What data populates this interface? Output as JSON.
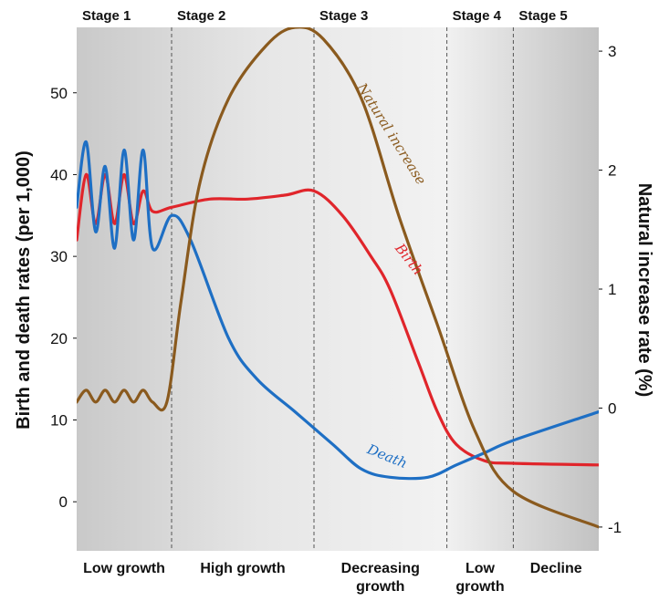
{
  "chart_data": {
    "type": "line",
    "title": "",
    "xlabel": "",
    "ylabel": "Birth and death rates (per 1,000)",
    "y2label": "Natural increase rate (%)",
    "ylim": [
      -6,
      58
    ],
    "y2lim": [
      -1.2,
      3.2
    ],
    "yticks": [
      "0",
      "10",
      "20",
      "30",
      "40",
      "50"
    ],
    "y2ticks": [
      "-1",
      "0",
      "1",
      "2",
      "3"
    ],
    "grid": "vertical dashed stage dividers",
    "stages": [
      {
        "name": "Stage 1",
        "bottom_label": [
          "Low growth"
        ],
        "range": [
          0,
          1
        ]
      },
      {
        "name": "Stage 2",
        "bottom_label": [
          "High growth"
        ],
        "range": [
          1,
          2.5
        ]
      },
      {
        "name": "Stage 3",
        "bottom_label": [
          "Decreasing",
          "growth"
        ],
        "range": [
          2.5,
          3.9
        ]
      },
      {
        "name": "Stage 4",
        "bottom_label": [
          "Low",
          "growth"
        ],
        "range": [
          3.9,
          4.6
        ]
      },
      {
        "name": "Stage 5",
        "bottom_label": [
          "Decline"
        ],
        "range": [
          4.6,
          5.5
        ]
      }
    ],
    "series": [
      {
        "name": "Birth",
        "axis": "left",
        "color": "#e0252b",
        "points": [
          [
            0,
            32
          ],
          [
            0.1,
            40
          ],
          [
            0.2,
            34
          ],
          [
            0.3,
            40
          ],
          [
            0.4,
            34
          ],
          [
            0.5,
            40
          ],
          [
            0.6,
            34
          ],
          [
            0.7,
            38
          ],
          [
            0.8,
            35.5
          ],
          [
            1,
            36
          ],
          [
            1.4,
            37
          ],
          [
            1.8,
            37
          ],
          [
            2.2,
            37.5
          ],
          [
            2.5,
            38
          ],
          [
            2.8,
            35
          ],
          [
            3.1,
            30
          ],
          [
            3.3,
            26
          ],
          [
            3.6,
            17
          ],
          [
            3.8,
            11
          ],
          [
            4.0,
            7
          ],
          [
            4.3,
            5
          ],
          [
            4.6,
            4.7
          ],
          [
            5.5,
            4.5
          ]
        ]
      },
      {
        "name": "Death",
        "axis": "left",
        "color": "#1e6fc4",
        "points": [
          [
            0,
            36
          ],
          [
            0.1,
            44
          ],
          [
            0.2,
            33
          ],
          [
            0.3,
            41
          ],
          [
            0.4,
            31
          ],
          [
            0.5,
            43
          ],
          [
            0.6,
            32
          ],
          [
            0.7,
            43
          ],
          [
            0.8,
            31
          ],
          [
            1,
            35
          ],
          [
            1.2,
            32
          ],
          [
            1.6,
            20
          ],
          [
            1.9,
            15
          ],
          [
            2.3,
            11
          ],
          [
            2.7,
            7
          ],
          [
            3.0,
            4
          ],
          [
            3.3,
            3
          ],
          [
            3.7,
            3
          ],
          [
            4.0,
            4.5
          ],
          [
            4.3,
            6
          ],
          [
            4.6,
            7.5
          ],
          [
            5.5,
            11
          ]
        ]
      },
      {
        "name": "Natural increase",
        "axis": "right",
        "color": "#8a5a1e",
        "points": [
          [
            0,
            0.05
          ],
          [
            0.1,
            0.15
          ],
          [
            0.2,
            0.05
          ],
          [
            0.3,
            0.15
          ],
          [
            0.4,
            0.05
          ],
          [
            0.5,
            0.15
          ],
          [
            0.6,
            0.05
          ],
          [
            0.7,
            0.15
          ],
          [
            0.8,
            0.05
          ],
          [
            0.95,
            0.05
          ],
          [
            1.1,
            0.9
          ],
          [
            1.3,
            1.9
          ],
          [
            1.6,
            2.6
          ],
          [
            2.0,
            3.05
          ],
          [
            2.3,
            3.2
          ],
          [
            2.6,
            3.1
          ],
          [
            3.0,
            2.6
          ],
          [
            3.4,
            1.6
          ],
          [
            3.8,
            0.7
          ],
          [
            4.2,
            -0.2
          ],
          [
            4.6,
            -0.7
          ],
          [
            5.5,
            -1.0
          ]
        ]
      }
    ],
    "annotations": [
      {
        "text": "Natural increase",
        "series": "Natural increase"
      },
      {
        "text": "Birth",
        "series": "Birth"
      },
      {
        "text": "Death",
        "series": "Death"
      }
    ]
  }
}
